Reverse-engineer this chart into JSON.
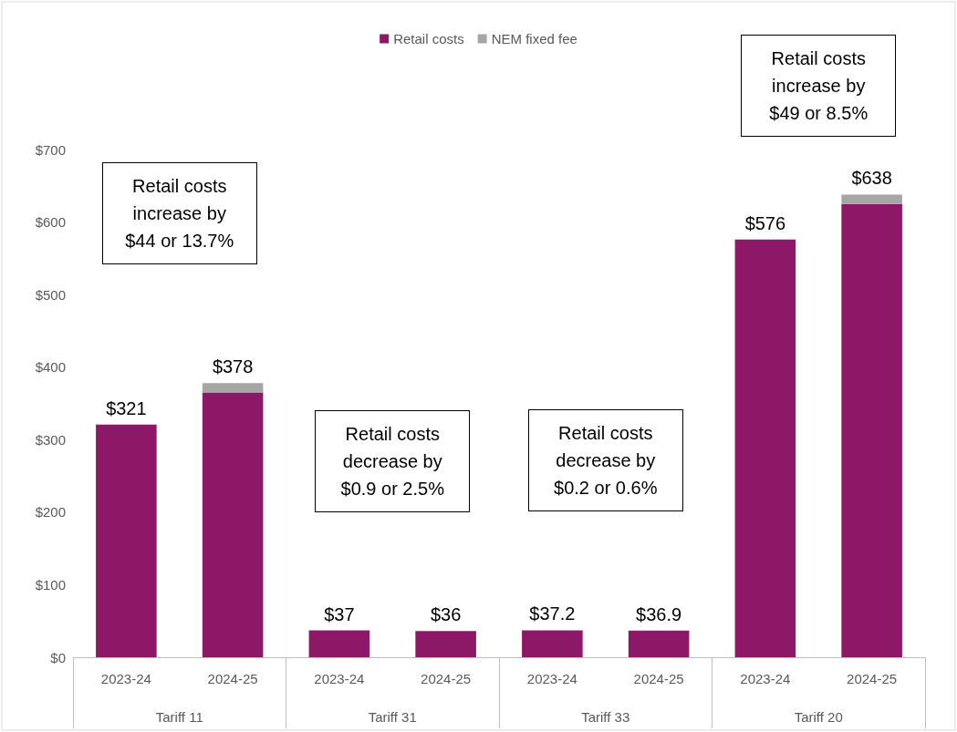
{
  "chart_data": {
    "type": "bar",
    "stacked": true,
    "categories": [
      "2023-24",
      "2024-25",
      "2023-24",
      "2024-25",
      "2023-24",
      "2024-25",
      "2023-24",
      "2024-25"
    ],
    "series": [
      {
        "name": "Retail costs",
        "color": "#8e1868",
        "values": [
          321,
          365,
          37,
          36,
          37.2,
          36.9,
          576,
          625
        ]
      },
      {
        "name": "NEM fixed fee",
        "color": "#a6a6a6",
        "values": [
          null,
          13,
          null,
          null,
          null,
          null,
          null,
          13
        ]
      }
    ],
    "totals": [
      "$321",
      "$378",
      "$37",
      "$36",
      "$37.2",
      "$36.9",
      "$576",
      "$638"
    ],
    "ylim": [
      0,
      900
    ],
    "yticks": [
      {
        "value": 0,
        "label": "$0"
      },
      {
        "value": 100,
        "label": "$100"
      },
      {
        "value": 200,
        "label": "$200"
      },
      {
        "value": 300,
        "label": "$300"
      },
      {
        "value": 400,
        "label": "$400"
      },
      {
        "value": 500,
        "label": "$500"
      },
      {
        "value": 600,
        "label": "$600"
      },
      {
        "value": 700,
        "label": "$700"
      }
    ],
    "annotations": [
      "Retail costs increase by $44 or 13.7%",
      "Retail costs decrease by $0.9 or 2.5%",
      "Retail costs decrease by $0.2 or 0.6%",
      "Retail costs increase by $49 or 8.5%",
      "Tariff 11",
      "Tariff 31",
      "Tariff 33",
      "Tariff 20"
    ],
    "legend": "top",
    "grid": false
  }
}
